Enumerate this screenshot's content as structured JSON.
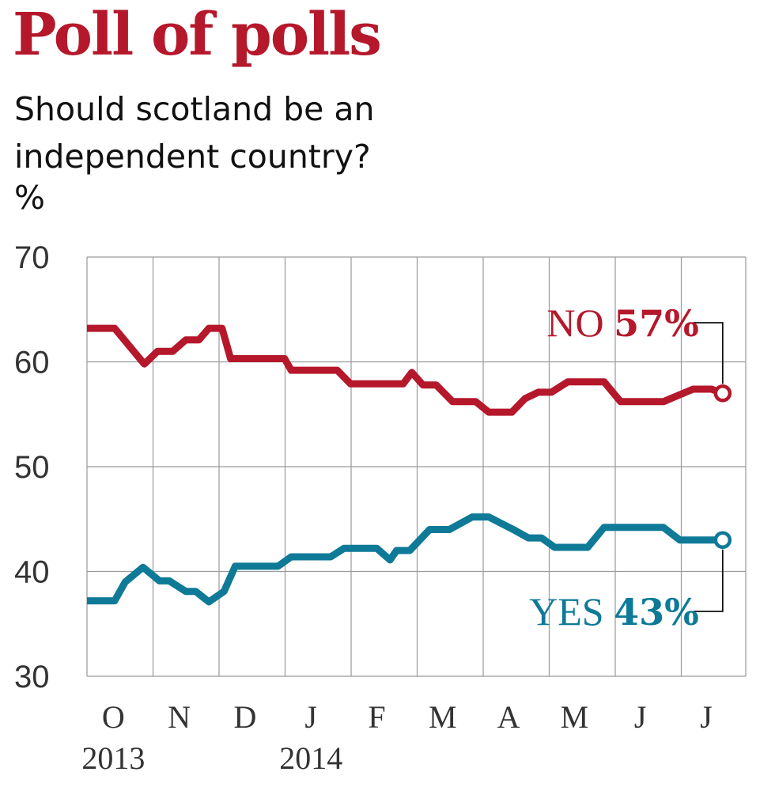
{
  "title": "Poll of polls",
  "subtitle": "Should scotland be an independent country?",
  "unit": "%",
  "colors": {
    "title": "#b5172b",
    "no": "#b5172b",
    "yes": "#0e7a97",
    "grid": "#9a9a9a"
  },
  "chart_data": {
    "type": "line",
    "title": "Poll of polls",
    "ylabel": "%",
    "ylim": [
      30,
      70
    ],
    "yticks": [
      70,
      60,
      50,
      40,
      30
    ],
    "xlabels": [
      "O",
      "N",
      "D",
      "J",
      "F",
      "M",
      "A",
      "M",
      "J",
      "J"
    ],
    "year_labels": [
      {
        "label": "2013",
        "at": 0
      },
      {
        "label": "2014",
        "at": 3
      }
    ],
    "x_range": [
      0,
      10
    ],
    "series": [
      {
        "name": "NO",
        "final_label": "NO",
        "final_value": "57%",
        "x": [
          0,
          0.42,
          0.87,
          1.07,
          1.3,
          1.5,
          1.7,
          1.85,
          2.05,
          2.18,
          2.23,
          2.5,
          3.0,
          3.1,
          3.45,
          3.8,
          4.0,
          4.4,
          4.8,
          4.93,
          5.1,
          5.3,
          5.55,
          5.9,
          6.1,
          6.45,
          6.65,
          6.85,
          7.05,
          7.3,
          7.45,
          7.85,
          8.1,
          8.3,
          8.6,
          8.75,
          9.2,
          9.3,
          9.48,
          9.65
        ],
        "values": [
          63.2,
          63.2,
          59.8,
          61.0,
          61.0,
          62.1,
          62.1,
          63.2,
          63.2,
          60.3,
          60.3,
          60.3,
          60.3,
          59.2,
          59.2,
          59.2,
          57.9,
          57.9,
          57.9,
          59.0,
          57.8,
          57.8,
          56.2,
          56.2,
          55.2,
          55.2,
          56.5,
          57.1,
          57.1,
          58.1,
          58.1,
          58.1,
          56.2,
          56.2,
          56.2,
          56.2,
          57.4,
          57.4,
          57.4,
          57.0
        ]
      },
      {
        "name": "YES",
        "final_label": "YES",
        "final_value": "43%",
        "x": [
          0,
          0.42,
          0.58,
          0.85,
          1.1,
          1.25,
          1.5,
          1.65,
          1.85,
          2.08,
          2.25,
          2.5,
          2.9,
          3.1,
          3.45,
          3.7,
          3.9,
          4.4,
          4.6,
          4.7,
          4.9,
          5.2,
          5.5,
          5.85,
          6.1,
          6.5,
          6.7,
          6.9,
          7.1,
          7.35,
          7.6,
          7.85,
          8.1,
          8.4,
          8.75,
          9.0,
          9.2,
          9.4,
          9.65
        ],
        "values": [
          37.2,
          37.2,
          39.0,
          40.4,
          39.1,
          39.1,
          38.1,
          38.1,
          37.1,
          38.1,
          40.5,
          40.5,
          40.5,
          41.4,
          41.4,
          41.4,
          42.2,
          42.2,
          41.1,
          42.0,
          42.0,
          44.0,
          44.0,
          45.2,
          45.2,
          43.9,
          43.2,
          43.2,
          42.3,
          42.3,
          42.3,
          44.2,
          44.2,
          44.2,
          44.2,
          43.0,
          43.0,
          43.0,
          43.0
        ]
      }
    ]
  }
}
